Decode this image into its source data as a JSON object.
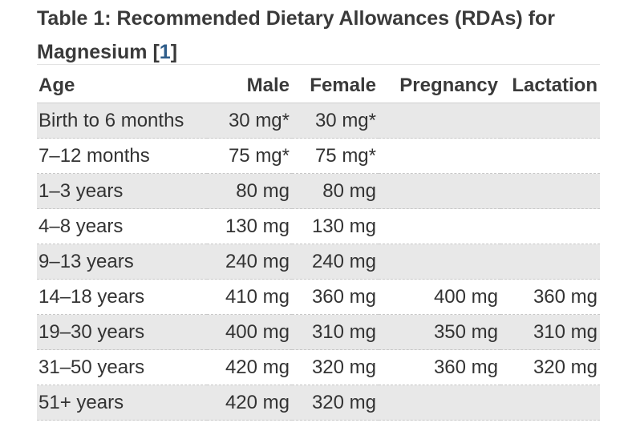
{
  "caption": {
    "text": "Table 1: Recommended Dietary Allowances (RDAs) for Magnesium [",
    "ref": "1",
    "close": "]"
  },
  "headers": {
    "age": "Age",
    "male": "Male",
    "female": "Female",
    "pregnancy": "Pregnancy",
    "lactation": "Lactation"
  },
  "rows": [
    {
      "age": "Birth to 6 months",
      "male": "30 mg*",
      "female": "30 mg*",
      "pregnancy": "",
      "lactation": ""
    },
    {
      "age": "7–12 months",
      "male": "75 mg*",
      "female": "75 mg*",
      "pregnancy": "",
      "lactation": ""
    },
    {
      "age": "1–3 years",
      "male": "80 mg",
      "female": "80 mg",
      "pregnancy": "",
      "lactation": ""
    },
    {
      "age": "4–8 years",
      "male": "130 mg",
      "female": "130 mg",
      "pregnancy": "",
      "lactation": ""
    },
    {
      "age": "9–13 years",
      "male": "240 mg",
      "female": "240 mg",
      "pregnancy": "",
      "lactation": ""
    },
    {
      "age": "14–18 years",
      "male": "410 mg",
      "female": "360 mg",
      "pregnancy": "400 mg",
      "lactation": "360 mg"
    },
    {
      "age": "19–30 years",
      "male": "400 mg",
      "female": "310 mg",
      "pregnancy": "350 mg",
      "lactation": "310 mg"
    },
    {
      "age": "31–50 years",
      "male": "420 mg",
      "female": "320 mg",
      "pregnancy": "360 mg",
      "lactation": "320 mg"
    },
    {
      "age": "51+ years",
      "male": "420 mg",
      "female": "320 mg",
      "pregnancy": "",
      "lactation": ""
    }
  ],
  "colors": {
    "row_shade": "#e8e8e8",
    "link": "#2f5d8a"
  }
}
